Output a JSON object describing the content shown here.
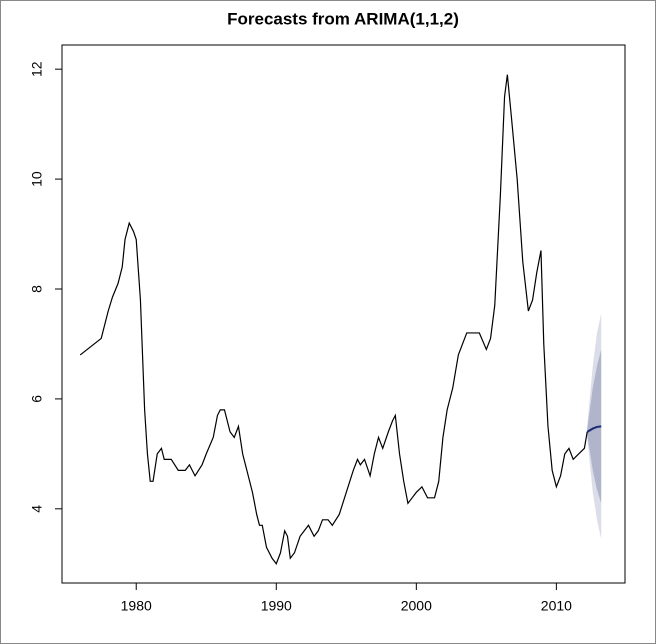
{
  "chart_data": {
    "type": "line",
    "title": "Forecasts from ARIMA(1,1,2)",
    "xlim": [
      1974.7,
      2014.9
    ],
    "ylim": [
      2.65,
      12.44
    ],
    "xticks": [
      1980,
      1990,
      2000,
      2010
    ],
    "yticks": [
      4,
      6,
      8,
      10,
      12
    ],
    "grid": false,
    "bands": [
      {
        "color": "#dbdde8",
        "x": [
          2012.2,
          2012.6,
          2012.9,
          2013.2
        ],
        "lower": [
          5.3,
          4.3,
          3.8,
          3.45
        ],
        "upper": [
          5.5,
          6.6,
          7.2,
          7.55
        ]
      },
      {
        "color": "#b1b5cc",
        "x": [
          2012.2,
          2012.6,
          2012.9,
          2013.2
        ],
        "lower": [
          5.35,
          4.7,
          4.35,
          4.1
        ],
        "upper": [
          5.45,
          6.2,
          6.6,
          6.9
        ]
      }
    ],
    "series": [
      {
        "color": "#000000",
        "x": [
          1976.0,
          1976.5,
          1977.0,
          1977.5,
          1978.0,
          1978.3,
          1978.7,
          1979.0,
          1979.2,
          1979.5,
          1979.8,
          1980.0,
          1980.3,
          1980.6,
          1980.8,
          1981.0,
          1981.2,
          1981.5,
          1981.8,
          1982.0,
          1982.5,
          1983.0,
          1983.5,
          1983.8,
          1984.2,
          1984.7,
          1985.0,
          1985.5,
          1985.8,
          1986.0,
          1986.3,
          1986.7,
          1987.0,
          1987.3,
          1987.6,
          1988.0,
          1988.3,
          1988.6,
          1988.8,
          1989.0,
          1989.3,
          1989.7,
          1990.0,
          1990.3,
          1990.6,
          1990.8,
          1991.0,
          1991.3,
          1991.7,
          1992.0,
          1992.3,
          1992.7,
          1993.0,
          1993.3,
          1993.7,
          1994.0,
          1994.5,
          1995.0,
          1995.5,
          1995.8,
          1996.0,
          1996.3,
          1996.7,
          1997.0,
          1997.3,
          1997.6,
          1998.0,
          1998.3,
          1998.5,
          1998.8,
          1999.1,
          1999.4,
          1999.7,
          2000.0,
          2000.4,
          2000.8,
          2001.3,
          2001.6,
          2001.9,
          2002.2,
          2002.6,
          2003.0,
          2003.3,
          2003.6,
          2004.0,
          2004.5,
          2005.0,
          2005.3,
          2005.6,
          2006.0,
          2006.3,
          2006.5,
          2006.8,
          2007.2,
          2007.6,
          2008.0,
          2008.3,
          2008.6,
          2008.9,
          2009.1,
          2009.4,
          2009.7,
          2010.0,
          2010.3,
          2010.6,
          2010.9,
          2011.2,
          2011.6,
          2012.0,
          2012.2
        ],
        "values": [
          6.8,
          6.9,
          7.0,
          7.1,
          7.6,
          7.85,
          8.1,
          8.4,
          8.9,
          9.2,
          9.05,
          8.9,
          7.8,
          5.8,
          5.0,
          4.5,
          4.5,
          5.0,
          5.1,
          4.9,
          4.9,
          4.7,
          4.7,
          4.8,
          4.6,
          4.8,
          5.0,
          5.3,
          5.7,
          5.8,
          5.8,
          5.4,
          5.3,
          5.5,
          5.0,
          4.6,
          4.3,
          3.9,
          3.7,
          3.7,
          3.3,
          3.1,
          3.0,
          3.2,
          3.6,
          3.5,
          3.1,
          3.2,
          3.5,
          3.6,
          3.7,
          3.5,
          3.6,
          3.8,
          3.8,
          3.7,
          3.9,
          4.3,
          4.7,
          4.9,
          4.8,
          4.9,
          4.6,
          5.0,
          5.3,
          5.1,
          5.4,
          5.6,
          5.7,
          5.0,
          4.5,
          4.1,
          4.2,
          4.3,
          4.4,
          4.2,
          4.2,
          4.5,
          5.3,
          5.8,
          6.2,
          6.8,
          7.0,
          7.2,
          7.2,
          7.2,
          6.9,
          7.1,
          7.7,
          9.7,
          11.5,
          11.9,
          11.1,
          10.0,
          8.5,
          7.6,
          7.8,
          8.3,
          8.7,
          7.0,
          5.5,
          4.7,
          4.4,
          4.6,
          5.0,
          5.1,
          4.9,
          5.0,
          5.1,
          5.4
        ]
      },
      {
        "color": "#1c2a73",
        "x": [
          2012.2,
          2012.6,
          2012.9,
          2013.2
        ],
        "values": [
          5.4,
          5.46,
          5.49,
          5.5
        ]
      }
    ]
  }
}
